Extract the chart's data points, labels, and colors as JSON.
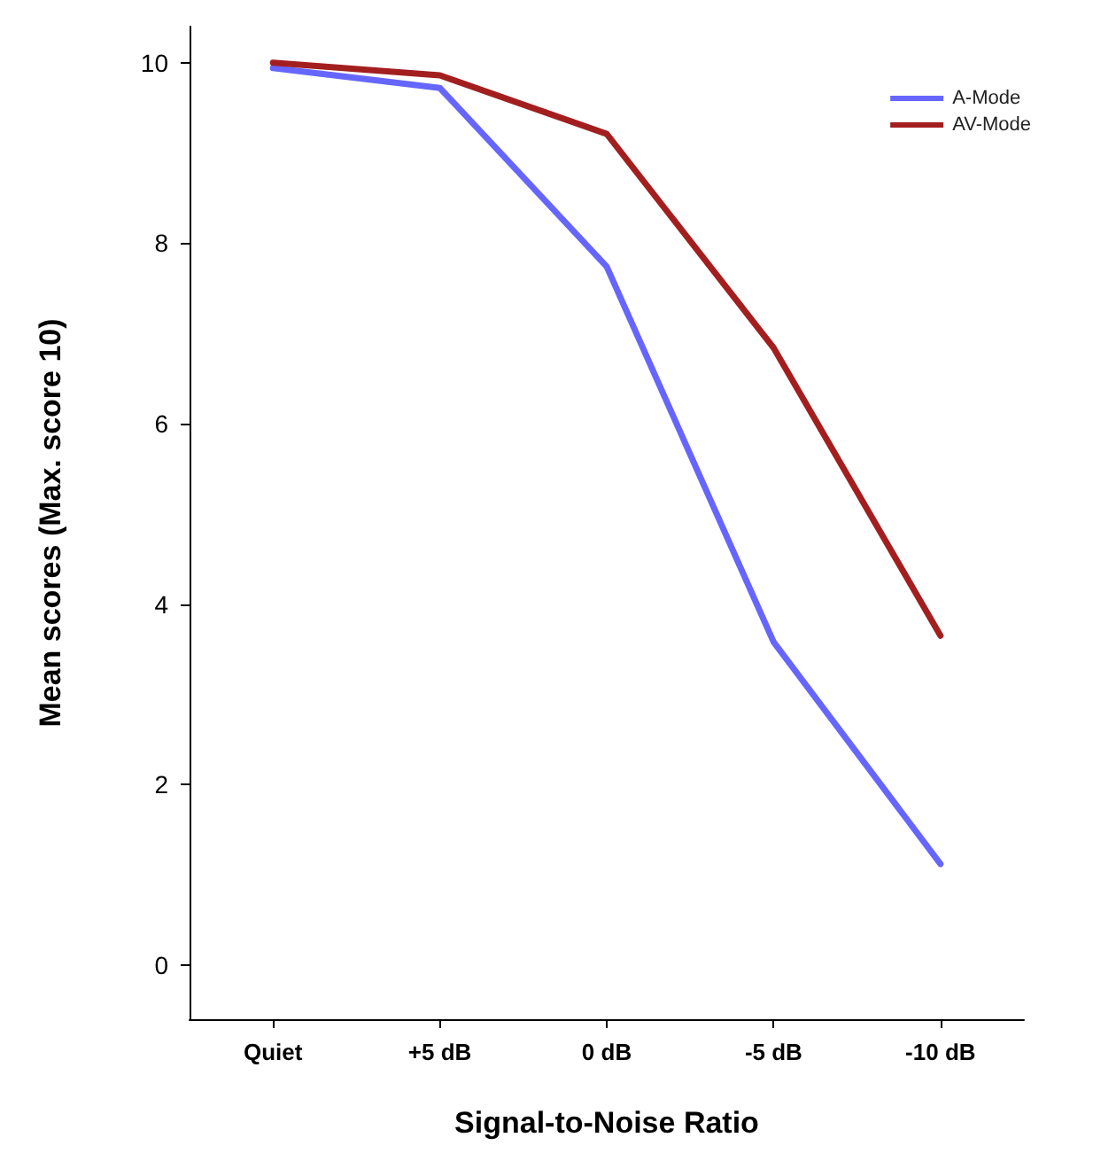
{
  "chart_data": {
    "type": "line",
    "xlabel": "Signal-to-Noise Ratio",
    "ylabel": "Mean scores (Max. score 10)",
    "categories": [
      "Quiet",
      "+5 dB",
      "0 dB",
      "-5 dB",
      "-10 dB"
    ],
    "series": [
      {
        "name": "A-Mode",
        "color": "#6666ff",
        "values": [
          9.94,
          9.72,
          7.74,
          3.58,
          1.12
        ]
      },
      {
        "name": "AV-Mode",
        "color": "#a31f1f",
        "values": [
          10.0,
          9.86,
          9.21,
          6.84,
          3.65
        ]
      }
    ],
    "ylim": [
      -0.6,
      10.4
    ],
    "yticks": [
      0,
      2,
      4,
      6,
      8,
      10
    ],
    "grid": false,
    "legend": "top right",
    "marker": "none",
    "line_style": "solid"
  }
}
